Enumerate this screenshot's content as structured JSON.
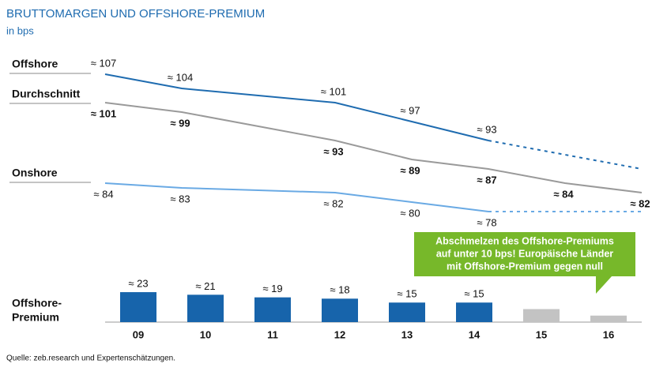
{
  "title": "BRUTTOMARGEN UND OFFSHORE-PREMIUM",
  "subtitle": "in bps",
  "source": "Quelle: zeb.research und Expertenschätzungen.",
  "chart_data": [
    {
      "type": "line",
      "ylim": [
        75,
        110
      ],
      "series": [
        {
          "name": "Offshore",
          "color": "#1f6cb0",
          "values": [
            107,
            104,
            102.5,
            101,
            97,
            93,
            90,
            87
          ],
          "value_labels": [
            "≈ 107",
            "≈ 104",
            null,
            "≈ 101",
            "≈ 97",
            "≈ 93",
            null,
            null
          ],
          "dashed": [
            false,
            false,
            false,
            false,
            false,
            false,
            true,
            true
          ],
          "label_side": "above",
          "bold_labels": false
        },
        {
          "name": "Durchschnitt",
          "color": "#9a9a9a",
          "values": [
            101,
            99,
            96,
            93,
            89,
            87,
            84,
            82
          ],
          "value_labels": [
            "≈ 101",
            "≈ 99",
            null,
            "≈ 93",
            "≈ 89",
            "≈ 87",
            "≈ 84",
            "≈ 82"
          ],
          "dashed": [
            false,
            false,
            false,
            false,
            false,
            false,
            false,
            false
          ],
          "label_side": "below",
          "bold_labels": true
        },
        {
          "name": "Onshore",
          "color": "#6aaae4",
          "values": [
            84,
            83,
            82.5,
            82,
            80,
            78,
            78,
            78
          ],
          "value_labels": [
            "≈ 84",
            "≈ 83",
            null,
            "≈ 82",
            "≈ 80",
            "≈ 78",
            null,
            null
          ],
          "dashed": [
            false,
            false,
            false,
            false,
            false,
            false,
            true,
            true
          ],
          "label_side": "below",
          "bold_labels": false
        }
      ]
    },
    {
      "type": "bar",
      "label_lines": [
        "Offshore-",
        "Premium"
      ],
      "categories": [
        "09",
        "10",
        "11",
        "12",
        "13",
        "14",
        "15",
        "16"
      ],
      "values": [
        23,
        21,
        19,
        18,
        15,
        15,
        10,
        5
      ],
      "value_labels": [
        "≈ 23",
        "≈ 21",
        "≈ 19",
        "≈ 18",
        "≈ 15",
        "≈ 15",
        null,
        null
      ],
      "colors": [
        "#1764ab",
        "#1764ab",
        "#1764ab",
        "#1764ab",
        "#1764ab",
        "#1764ab",
        "#c3c3c3",
        "#c3c3c3"
      ],
      "ylim": [
        0,
        30
      ],
      "annotation": [
        "Abschmelzen des Offshore-Premiums",
        "auf unter 10 bps! Europäische Länder",
        "mit Offshore-Premium gegen null"
      ]
    }
  ]
}
